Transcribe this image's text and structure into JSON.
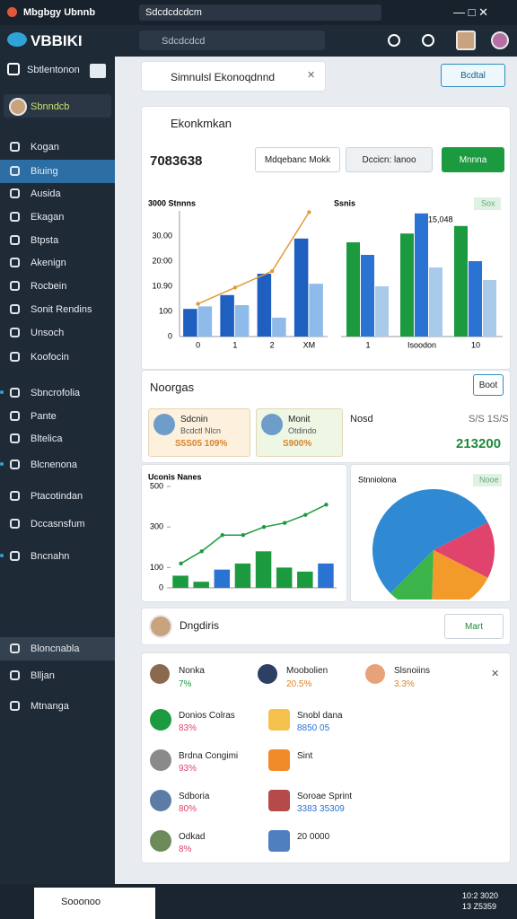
{
  "titlebar": {
    "app": "Mbgbgy Ubnnb",
    "tab": "Sdcdcdcdcm"
  },
  "brand": "VBBIKI",
  "search": "Sdcdcdcd",
  "sidebar": {
    "section": "Sbtlentonon",
    "user": "Sbnndcb",
    "items": [
      "Kogan",
      "Biuing",
      "Ausida",
      "Ekagan",
      "Btpsta",
      "Akenign",
      "Rocbein",
      "Sonit Rendins",
      "Unsoch",
      "Koofocin",
      "Sbncrofolia",
      "Pante",
      "Bltelica",
      "Blcnenona",
      "Ptacotindan",
      "Dccasnsfum",
      "Bncnahn",
      "Bloncnabla",
      "Blljan",
      "Mtnanga"
    ]
  },
  "tabbar": {
    "tab": "Simnulsl Ekonoqdnnd",
    "button": "Bcdtal"
  },
  "panel": {
    "title": "Ekonkmkan",
    "code": "7083638",
    "filter": "Mdqebanc Mokk",
    "select": "Dccicn: lanoo",
    "action": "Mnnna"
  },
  "charts": [
    {
      "type": "bar-line",
      "title": "3000 Stnnns",
      "ytick_labels": [
        "30.00",
        "20:00",
        "10.90",
        "100",
        "0"
      ],
      "categories": [
        "0",
        "1",
        "2",
        "XM"
      ],
      "ylim": [
        0,
        100
      ],
      "series": [
        {
          "color": "#1f5fbf",
          "values": [
            22,
            33,
            50,
            78
          ]
        },
        {
          "color": "#8fbbeb",
          "values": [
            24,
            25,
            15,
            42
          ]
        },
        {
          "type": "line",
          "color": "#e39a3b",
          "values": [
            26,
            39,
            52,
            99
          ]
        }
      ]
    },
    {
      "type": "bar",
      "title": "Ssnis",
      "annotation": "15,048",
      "badge": "Sox",
      "categories": [
        "1",
        "Isoodon",
        "10"
      ],
      "ylim": [
        0,
        100
      ],
      "series": [
        {
          "color": "#1c9a3f",
          "values": [
            75,
            82,
            88
          ]
        },
        {
          "color": "#2a73d3",
          "values": [
            65,
            98,
            60
          ]
        },
        {
          "color": "#a9cbe9",
          "values": [
            40,
            55,
            45
          ]
        }
      ]
    },
    {
      "type": "bar-line",
      "title": "Uconis Nanes",
      "ylim": [
        0,
        500
      ],
      "yticks": [
        0,
        100,
        300,
        500
      ],
      "categories": [
        null,
        null,
        null,
        null,
        null,
        null,
        null,
        null
      ],
      "series": [
        {
          "colors": [
            "#1c9a3f",
            "#1c9a3f",
            "#2a73d3",
            "#1c9a3f",
            "#1c9a3f",
            "#1c9a3f",
            "#1c9a3f",
            "#2a73d3"
          ],
          "values": [
            60,
            30,
            90,
            120,
            180,
            100,
            80,
            120
          ]
        },
        {
          "type": "line",
          "color": "#1c9a3f",
          "values": [
            120,
            180,
            260,
            260,
            300,
            320,
            360,
            410
          ]
        }
      ]
    },
    {
      "type": "pie",
      "title": "Stnniolona",
      "badge": "Nooe",
      "values": [
        55,
        15,
        18,
        12
      ],
      "colors": [
        "#2f8ad3",
        "#e0436b",
        "#f29b2b",
        "#3bb54a"
      ]
    }
  ],
  "section": {
    "title": "Noorgas",
    "button": "Boot",
    "cards": [
      {
        "name": "Sdcnin",
        "line": "Bcdctl Nlcn",
        "value": "S5S05 109%"
      },
      {
        "name": "Monit",
        "line": "Otdindo",
        "value": "S900%"
      }
    ],
    "side": {
      "label": "Nosd",
      "meta": "S/S 1S/S",
      "value": "213200"
    }
  },
  "people": {
    "title": "Dngdiris",
    "button": "Mart",
    "row": [
      {
        "name": "Nonka",
        "value": "7%"
      },
      {
        "name": "Moobolien",
        "value": "20.5%"
      },
      {
        "name": "Slsnoiins",
        "value": "3.3%"
      }
    ],
    "left": [
      {
        "name": "Donios Colras",
        "value": "83%"
      },
      {
        "name": "Brdna Congimi",
        "value": "93%"
      },
      {
        "name": "Sdboria",
        "value": "80%"
      },
      {
        "name": "Odkad",
        "value": "8%"
      }
    ],
    "right": [
      {
        "name": "Snobl dana",
        "value": "8850 05"
      },
      {
        "name": "Sint"
      },
      {
        "name": "Soroae Sprint",
        "value": "3383 35309"
      },
      {
        "name": "20 0000"
      }
    ]
  },
  "taskbar": {
    "search": "Sooonoo",
    "time": "10:2 3020",
    "date": "13 Z5359"
  }
}
